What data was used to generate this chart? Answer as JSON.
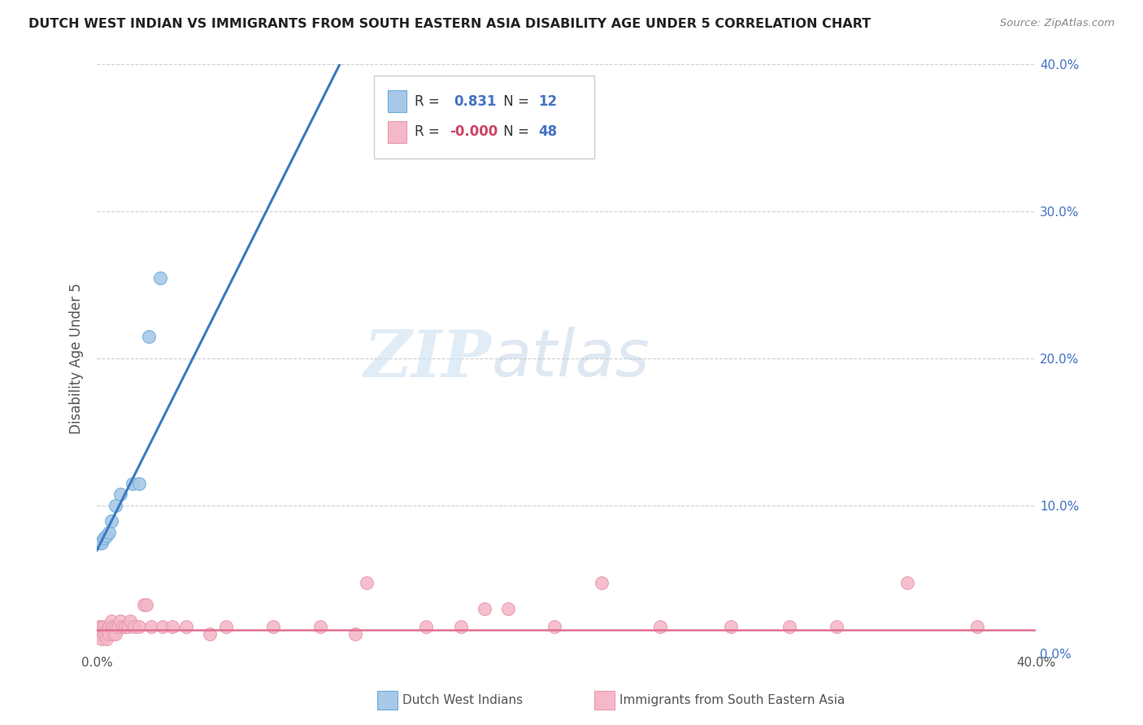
{
  "title": "DUTCH WEST INDIAN VS IMMIGRANTS FROM SOUTH EASTERN ASIA DISABILITY AGE UNDER 5 CORRELATION CHART",
  "source": "Source: ZipAtlas.com",
  "ylabel": "Disability Age Under 5",
  "xlim": [
    0,
    0.4
  ],
  "ylim": [
    0,
    0.4
  ],
  "xtick_positions": [
    0.0,
    0.4
  ],
  "xtick_labels": [
    "0.0%",
    "40.0%"
  ],
  "ytick_positions": [
    0.0,
    0.1,
    0.2,
    0.3,
    0.4
  ],
  "ytick_labels_right": [
    "0.0%",
    "10.0%",
    "20.0%",
    "30.0%",
    "40.0%"
  ],
  "blue_R": "0.831",
  "blue_N": "12",
  "pink_R": "-0.000",
  "pink_N": "48",
  "blue_label": "Dutch West Indians",
  "pink_label": "Immigrants from South Eastern Asia",
  "blue_color": "#a8c8e8",
  "pink_color": "#f5b8c8",
  "blue_edge_color": "#6baed6",
  "pink_edge_color": "#e899b0",
  "blue_line_color": "#3a7abf",
  "pink_line_color": "#e07090",
  "blue_scatter": [
    [
      0.001,
      0.075
    ],
    [
      0.002,
      0.075
    ],
    [
      0.003,
      0.078
    ],
    [
      0.004,
      0.08
    ],
    [
      0.005,
      0.082
    ],
    [
      0.006,
      0.09
    ],
    [
      0.008,
      0.1
    ],
    [
      0.01,
      0.108
    ],
    [
      0.015,
      0.115
    ],
    [
      0.018,
      0.115
    ],
    [
      0.022,
      0.215
    ],
    [
      0.027,
      0.255
    ]
  ],
  "pink_scatter": [
    [
      0.001,
      0.018
    ],
    [
      0.001,
      0.013
    ],
    [
      0.002,
      0.018
    ],
    [
      0.002,
      0.01
    ],
    [
      0.003,
      0.013
    ],
    [
      0.003,
      0.018
    ],
    [
      0.004,
      0.016
    ],
    [
      0.004,
      0.01
    ],
    [
      0.005,
      0.018
    ],
    [
      0.005,
      0.013
    ],
    [
      0.006,
      0.018
    ],
    [
      0.006,
      0.022
    ],
    [
      0.007,
      0.018
    ],
    [
      0.007,
      0.013
    ],
    [
      0.008,
      0.018
    ],
    [
      0.008,
      0.013
    ],
    [
      0.009,
      0.018
    ],
    [
      0.01,
      0.022
    ],
    [
      0.011,
      0.018
    ],
    [
      0.012,
      0.018
    ],
    [
      0.013,
      0.018
    ],
    [
      0.014,
      0.022
    ],
    [
      0.016,
      0.018
    ],
    [
      0.018,
      0.018
    ],
    [
      0.02,
      0.033
    ],
    [
      0.021,
      0.033
    ],
    [
      0.023,
      0.018
    ],
    [
      0.028,
      0.018
    ],
    [
      0.032,
      0.018
    ],
    [
      0.038,
      0.018
    ],
    [
      0.048,
      0.013
    ],
    [
      0.055,
      0.018
    ],
    [
      0.075,
      0.018
    ],
    [
      0.095,
      0.018
    ],
    [
      0.11,
      0.013
    ],
    [
      0.115,
      0.048
    ],
    [
      0.14,
      0.018
    ],
    [
      0.155,
      0.018
    ],
    [
      0.165,
      0.03
    ],
    [
      0.175,
      0.03
    ],
    [
      0.195,
      0.018
    ],
    [
      0.215,
      0.048
    ],
    [
      0.24,
      0.018
    ],
    [
      0.27,
      0.018
    ],
    [
      0.295,
      0.018
    ],
    [
      0.315,
      0.018
    ],
    [
      0.345,
      0.048
    ],
    [
      0.375,
      0.018
    ]
  ],
  "blue_trend_x": [
    0.0,
    0.105
  ],
  "blue_trend_y": [
    0.07,
    0.405
  ],
  "pink_trend_x": [
    0.0,
    0.4
  ],
  "pink_trend_y": [
    0.016,
    0.016
  ],
  "watermark_zip": "ZIP",
  "watermark_atlas": "atlas",
  "background_color": "#ffffff",
  "grid_color": "#d0d0d0",
  "label_color": "#555555",
  "right_axis_color": "#4472c4",
  "title_color": "#222222"
}
